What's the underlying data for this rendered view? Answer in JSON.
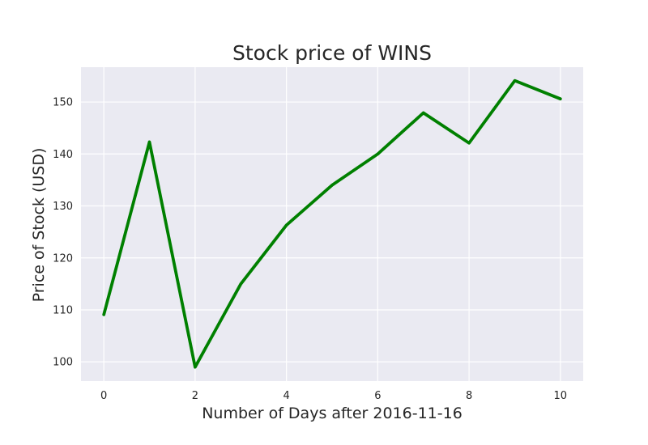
{
  "chart_data": {
    "type": "line",
    "title": "Stock price of WINS",
    "xlabel": "Number of Days after 2016-11-16",
    "ylabel": "Price of Stock (USD)",
    "x": [
      0,
      1,
      2,
      3,
      4,
      5,
      6,
      7,
      8,
      9,
      10
    ],
    "series": [
      {
        "values": [
          109.1,
          142.3,
          99.0,
          115.0,
          126.3,
          134.0,
          140.0,
          147.9,
          142.1,
          154.1,
          150.6
        ],
        "color": "#008000"
      }
    ],
    "xlim": [
      -0.5,
      10.5
    ],
    "ylim": [
      96.3,
      156.7
    ],
    "x_ticks": [
      "0",
      "2",
      "4",
      "6",
      "8",
      "10"
    ],
    "y_ticks": [
      "100",
      "110",
      "120",
      "130",
      "140",
      "150"
    ],
    "grid": true,
    "background": "#eaeaf2",
    "grid_color": "#ffffff"
  }
}
